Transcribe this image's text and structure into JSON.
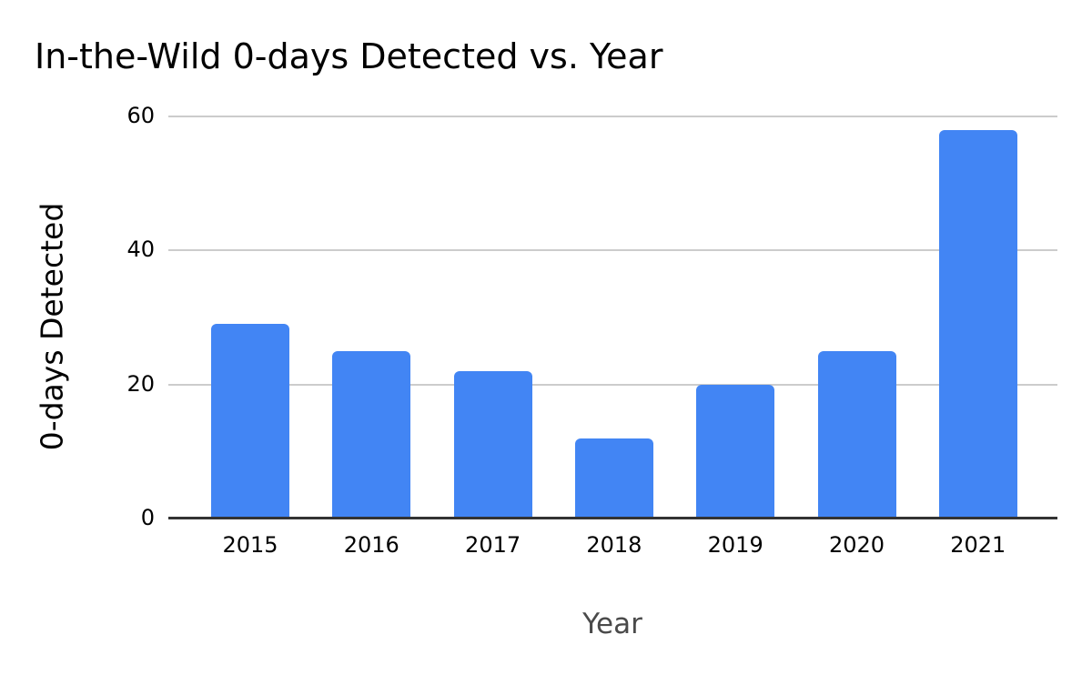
{
  "chart_data": {
    "type": "bar",
    "title": "In-the-Wild 0-days Detected vs. Year",
    "xlabel": "Year",
    "ylabel": "0-days Detected",
    "categories": [
      "2015",
      "2016",
      "2017",
      "2018",
      "2019",
      "2020",
      "2021"
    ],
    "values": [
      29,
      25,
      22,
      12,
      20,
      25,
      58
    ],
    "ylim": [
      0,
      60
    ],
    "yticks": [
      0,
      20,
      40,
      60
    ],
    "grid": "horizontal",
    "legend_position": "none",
    "bar_color": "#4285f4",
    "gridline_color": "#cccccc",
    "axis_line_color": "#333333",
    "title_color": "#000000",
    "tick_label_color": "#000000",
    "y_axis_title_color": "#000000",
    "x_axis_title_color": "#4a4a4a",
    "background_color": "#ffffff"
  }
}
